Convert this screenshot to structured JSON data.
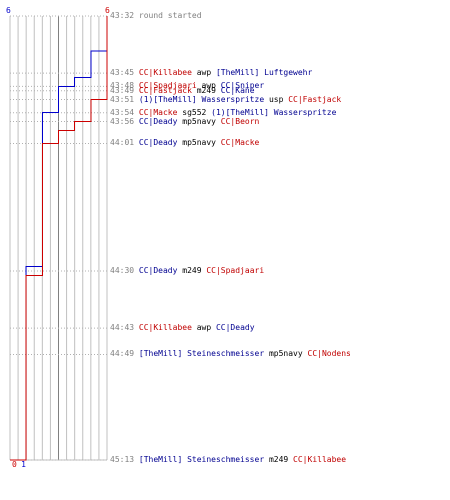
{
  "chart_data": {
    "type": "line",
    "title": "",
    "xlabel": "",
    "ylabel": "",
    "ylim_labels": [
      "6",
      "0"
    ],
    "colors": {
      "blue_team": "#0000cc",
      "red_team": "#cc0000",
      "grid": "#c0c0c0",
      "grid_mid": "#808080"
    },
    "series": [
      {
        "team": "blue",
        "start_label": "6",
        "end_label": "1",
        "steps": [
          [
            0,
            6
          ],
          [
            8,
            5
          ],
          [
            14,
            4
          ],
          [
            16,
            3
          ],
          [
            22,
            2
          ],
          [
            57,
            1
          ]
        ]
      },
      {
        "team": "red",
        "start_label": "6",
        "end_label": "0",
        "steps": [
          [
            0,
            6
          ],
          [
            19,
            5
          ],
          [
            24,
            4
          ],
          [
            26,
            3
          ],
          [
            29,
            2
          ],
          [
            59,
            1
          ],
          [
            101,
            0
          ]
        ]
      }
    ],
    "events": [
      {
        "time": "43:32",
        "parts": [
          {
            "text": "round started",
            "c": "gray"
          }
        ]
      },
      {
        "time": "43:45",
        "parts": [
          {
            "text": "CC|Killabee",
            "c": "red"
          },
          {
            "text": " awp ",
            "c": "black"
          },
          {
            "text": "[TheMill] Luftgewehr",
            "c": "blue"
          }
        ]
      },
      {
        "time": "43:48",
        "parts": [
          {
            "text": "CC|Spadjaari",
            "c": "red"
          },
          {
            "text": " awp ",
            "c": "black"
          },
          {
            "text": "CC|Sniper",
            "c": "blue"
          }
        ]
      },
      {
        "time": "43:49",
        "parts": [
          {
            "text": "CC|Fastjack",
            "c": "red"
          },
          {
            "text": " m249 ",
            "c": "black"
          },
          {
            "text": "CC|Kane",
            "c": "blue"
          }
        ]
      },
      {
        "time": "43:51",
        "parts": [
          {
            "text": "(1)[TheMill] Wasserspritze",
            "c": "blue"
          },
          {
            "text": " usp ",
            "c": "black"
          },
          {
            "text": "CC|Fastjack",
            "c": "red"
          }
        ]
      },
      {
        "time": "43:54",
        "parts": [
          {
            "text": "CC|Macke",
            "c": "red"
          },
          {
            "text": " sg552 ",
            "c": "black"
          },
          {
            "text": "(1)[TheMill] Wasserspritze",
            "c": "blue"
          }
        ]
      },
      {
        "time": "43:56",
        "parts": [
          {
            "text": "CC|Deady",
            "c": "blue"
          },
          {
            "text": " mp5navy ",
            "c": "black"
          },
          {
            "text": "CC|Beorn",
            "c": "red"
          }
        ]
      },
      {
        "time": "44:01",
        "parts": [
          {
            "text": "CC|Deady",
            "c": "blue"
          },
          {
            "text": " mp5navy ",
            "c": "black"
          },
          {
            "text": "CC|Macke",
            "c": "red"
          }
        ]
      },
      {
        "time": "44:30",
        "parts": [
          {
            "text": "CC|Deady",
            "c": "blue"
          },
          {
            "text": " m249 ",
            "c": "black"
          },
          {
            "text": "CC|Spadjaari",
            "c": "red"
          }
        ]
      },
      {
        "time": "44:43",
        "parts": [
          {
            "text": "CC|Killabee",
            "c": "red"
          },
          {
            "text": " awp ",
            "c": "black"
          },
          {
            "text": "CC|Deady",
            "c": "blue"
          }
        ]
      },
      {
        "time": "44:49",
        "parts": [
          {
            "text": "[TheMill] Steineschmeisser",
            "c": "blue"
          },
          {
            "text": " mp5navy ",
            "c": "black"
          },
          {
            "text": "CC|Nodens",
            "c": "red"
          }
        ]
      },
      {
        "time": "45:13",
        "parts": [
          {
            "text": "[TheMill] Steineschmeisser",
            "c": "blue"
          },
          {
            "text": " m249 ",
            "c": "black"
          },
          {
            "text": "CC|Killabee",
            "c": "red"
          }
        ]
      }
    ]
  }
}
